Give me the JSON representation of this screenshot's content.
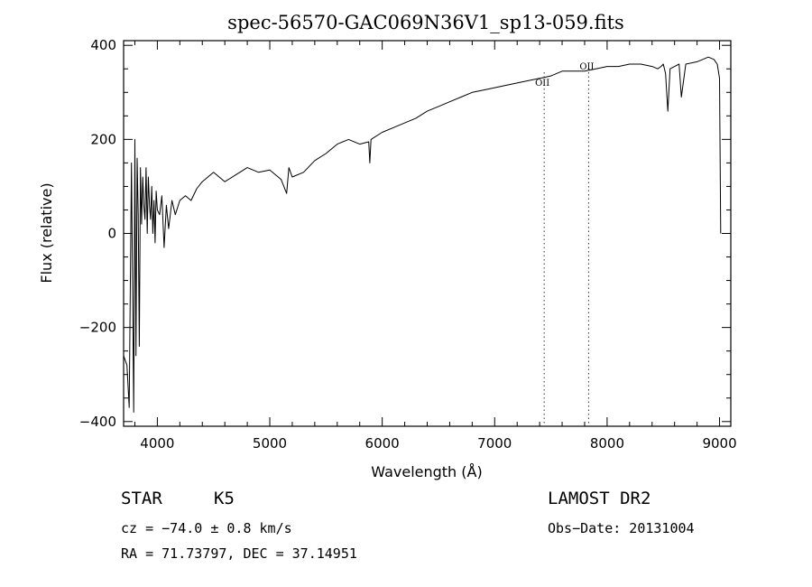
{
  "chart_data": {
    "type": "line",
    "title": "spec-56570-GAC069N36V1_sp13-059.fits",
    "xlabel": "Wavelength (Å)",
    "ylabel": "Flux (relative)",
    "xlim": [
      3700,
      9100
    ],
    "ylim": [
      -410,
      410
    ],
    "x_ticks": [
      4000,
      5000,
      6000,
      7000,
      8000,
      9000
    ],
    "x_tick_labels": [
      "4000",
      "5000",
      "6000",
      "7000",
      "8000",
      "9000"
    ],
    "y_ticks": [
      -400,
      -200,
      0,
      200,
      400
    ],
    "y_tick_labels": [
      "−400",
      "−200",
      "0",
      "200",
      "400"
    ],
    "grid": false,
    "series": [
      {
        "x": [
          3700,
          3730,
          3750,
          3770,
          3790,
          3800,
          3810,
          3820,
          3830,
          3840,
          3850,
          3860,
          3870,
          3880,
          3890,
          3900,
          3910,
          3920,
          3930,
          3940,
          3950,
          3960,
          3970,
          3980,
          3990,
          4000,
          4020,
          4040,
          4060,
          4080,
          4100,
          4130,
          4160,
          4200,
          4250,
          4300,
          4350,
          4400,
          4500,
          4600,
          4700,
          4800,
          4900,
          5000,
          5100,
          5150,
          5170,
          5200,
          5300,
          5400,
          5500,
          5600,
          5700,
          5800,
          5880,
          5890,
          5900,
          6000,
          6100,
          6200,
          6300,
          6400,
          6500,
          6600,
          6700,
          6800,
          6900,
          7000,
          7100,
          7200,
          7300,
          7400,
          7500,
          7600,
          7700,
          7800,
          7900,
          8000,
          8100,
          8200,
          8300,
          8400,
          8450,
          8480,
          8500,
          8520,
          8540,
          8560,
          8600,
          8640,
          8660,
          8700,
          8800,
          8900,
          8950,
          8980,
          9000,
          9010
        ],
        "y": [
          -260,
          -280,
          -370,
          150,
          -380,
          200,
          -260,
          160,
          40,
          -240,
          140,
          20,
          120,
          60,
          30,
          140,
          0,
          120,
          60,
          30,
          100,
          0,
          70,
          -20,
          90,
          50,
          40,
          80,
          -30,
          60,
          10,
          70,
          40,
          70,
          80,
          70,
          95,
          110,
          130,
          110,
          125,
          140,
          130,
          135,
          115,
          85,
          140,
          120,
          130,
          155,
          170,
          190,
          200,
          190,
          195,
          150,
          200,
          215,
          225,
          235,
          245,
          260,
          270,
          280,
          290,
          300,
          305,
          310,
          315,
          320,
          325,
          330,
          335,
          345,
          345,
          345,
          350,
          355,
          355,
          360,
          360,
          355,
          350,
          355,
          360,
          340,
          260,
          350,
          355,
          360,
          290,
          360,
          365,
          375,
          370,
          360,
          330,
          0
        ]
      }
    ],
    "annotations": [
      {
        "label": "OII",
        "x": 7440
      },
      {
        "label": "OII",
        "x": 7835
      }
    ]
  },
  "footer": {
    "object_type": "STAR",
    "subclass": "K5",
    "survey": "LAMOST DR2",
    "cz": "cz = −74.0 ± 0.8 km/s",
    "obs_date": "Obs−Date: 20131004",
    "coords": "RA =  71.73797, DEC =  37.14951"
  }
}
